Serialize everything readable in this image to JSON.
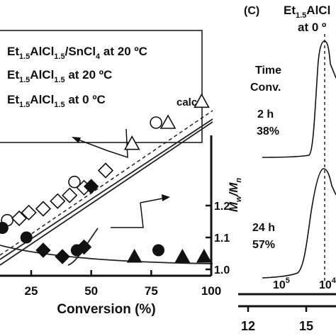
{
  "chart_data": [
    {
      "type": "scatter",
      "xlabel": "Conversion (%)",
      "ylabel_right": "Mw/Mn",
      "x_ticks": [
        "25",
        "50",
        "75",
        "100"
      ],
      "y_right_ticks": [
        "1.2",
        "1.1",
        "1.0"
      ],
      "xlim": [
        12,
        100
      ],
      "ylim_right": [
        0.98,
        1.42
      ],
      "legend": [
        {
          "label_main": "Et",
          "sub1": "1.5",
          "mid": "AlCl",
          "sub2": "1.5",
          "tail": "/SnCl",
          "sub3": "4",
          "suffix": " at 20 ºC",
          "marker": "circle"
        },
        {
          "label_main": "Et",
          "sub1": "1.5",
          "mid": "AlCl",
          "sub2": "1.5",
          "tail": "",
          "sub3": "",
          "suffix": " at 20 ºC",
          "marker": "diamond"
        },
        {
          "label_main": "Et",
          "sub1": "1.5",
          "mid": "AlCl",
          "sub2": "1.5",
          "tail": "",
          "sub3": "",
          "suffix": " at 0 ºC",
          "marker": "triangle"
        }
      ],
      "annotation": "calcd",
      "mn_series": [
        {
          "name": "Et1.5AlCl1.5/SnCl4 at 20 ºC",
          "marker": "circle-open",
          "x": [
            15,
            43,
            77
          ],
          "y": [
            0.29,
            0.49,
            0.8
          ]
        },
        {
          "name": "Et1.5AlCl1.5 at 20 ºC",
          "marker": "diamond-open",
          "x": [
            20,
            24,
            30,
            36,
            41,
            47,
            56
          ],
          "y": [
            0.3,
            0.33,
            0.35,
            0.39,
            0.42,
            0.46,
            0.55
          ]
        },
        {
          "name": "Et1.5AlCl1.5 at 0 ºC",
          "marker": "triangle-open",
          "x": [
            67,
            82,
            96
          ],
          "y": [
            0.69,
            0.8,
            0.91
          ]
        }
      ],
      "pdi_series": [
        {
          "name": "Et1.5AlCl1.5/SnCl4 at 20 ºC",
          "marker": "circle-filled",
          "x": [
            13,
            23,
            44,
            78
          ],
          "y": [
            1.13,
            1.1,
            1.06,
            1.06
          ]
        },
        {
          "name": "Et1.5AlCl1.5 at 20 ºC",
          "marker": "diamond-filled",
          "x": [
            30,
            38,
            47,
            50
          ],
          "y": [
            1.06,
            1.04,
            1.07,
            1.26
          ]
        },
        {
          "name": "Et1.5AlCl1.5 at 0 ºC",
          "marker": "triangle-filled",
          "x": [
            68,
            88,
            97
          ],
          "y": [
            1.04,
            1.04,
            1.04
          ]
        }
      ]
    },
    {
      "type": "line",
      "panel_label": "(C)",
      "title_main": "Et",
      "title_sub1": "1.5",
      "title_mid": "AlCl",
      "title_line2": "at 0 º",
      "header": [
        "Time",
        "Conv."
      ],
      "traces": [
        {
          "time": "2 h",
          "conversion": "38%"
        },
        {
          "time": "24 h",
          "conversion": "57%"
        }
      ],
      "x_mw_ticks": [
        "10",
        "10"
      ],
      "x_mw_exponents": [
        "5",
        "4"
      ],
      "x_elution_ticks": [
        "12",
        "15"
      ]
    }
  ]
}
